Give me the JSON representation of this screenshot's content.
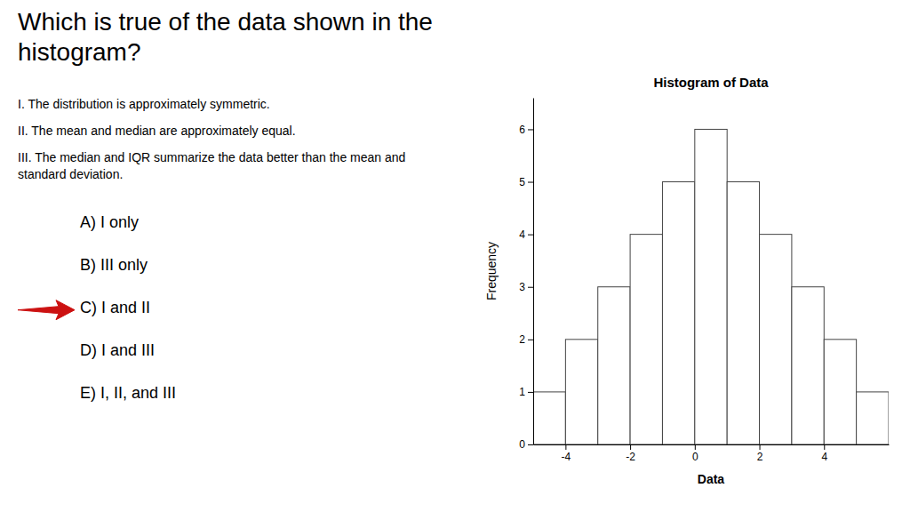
{
  "chart_data": {
    "type": "histogram",
    "title": "Histogram of Data",
    "x_label": "Data",
    "y_label": "Frequency",
    "bins": [
      -5,
      -4,
      -3,
      -2,
      -1,
      0,
      1,
      2,
      3,
      4,
      5,
      6
    ],
    "values": [
      1,
      2,
      3,
      4,
      5,
      6,
      5,
      4,
      3,
      2,
      1
    ],
    "color": "white",
    "xlim": [
      -5,
      6
    ],
    "xticks": [
      -4,
      -2,
      0,
      2,
      4
    ],
    "ylim": [
      0,
      6.6
    ],
    "yticks": [
      0,
      1,
      2,
      3,
      4,
      5,
      6
    ],
    "grid": false,
    "annotations": [
      {
        "text": "Which is true of the data shown in the\nhistogram?"
      },
      {
        "text": "I. The distribution is approximately symmetric."
      },
      {
        "text": "II. The mean and median are approximately equal."
      },
      {
        "text": "III. The median and IQR summarize the data better than the mean and\nstandard deviation."
      },
      {
        "text": "A) I only",
        "arrow": false
      },
      {
        "text": "B) III only",
        "arrow": false
      },
      {
        "text": "C) I and II",
        "arrow": true,
        "color": "#cc1111"
      },
      {
        "text": "D) I and III",
        "arrow": false
      },
      {
        "text": "E) I, II, and III",
        "arrow": false
      }
    ]
  }
}
